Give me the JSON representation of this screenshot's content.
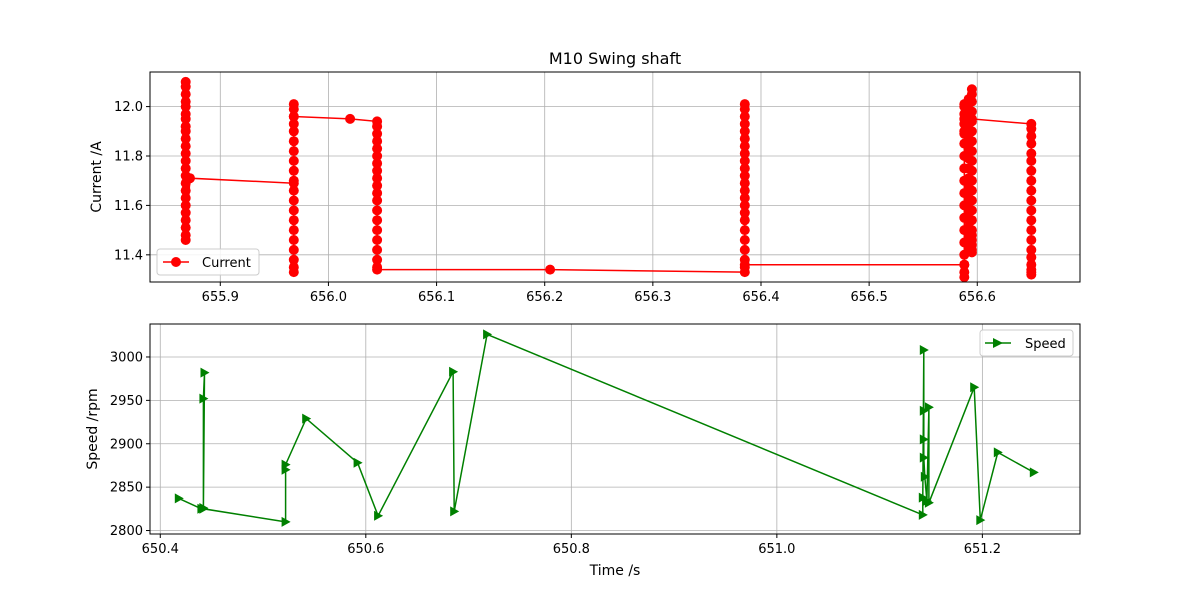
{
  "chart_data": [
    {
      "type": "line",
      "title": "M10 Swing shaft",
      "xlabel": "",
      "ylabel": "Current /A",
      "xlim": [
        655.835,
        656.695
      ],
      "ylim": [
        11.29,
        12.14
      ],
      "xticks": [
        655.9,
        656.0,
        656.1,
        656.2,
        656.3,
        656.4,
        656.5,
        656.6
      ],
      "xtick_labels": [
        "655.9",
        "656.0",
        "656.1",
        "656.2",
        "656.3",
        "656.4",
        "656.5",
        "656.6"
      ],
      "yticks": [
        11.4,
        11.6,
        11.8,
        12.0
      ],
      "ytick_labels": [
        "11.4",
        "11.6",
        "11.8",
        "12.0"
      ],
      "grid": true,
      "legend": "lower-left",
      "series": [
        {
          "name": "Current",
          "color": "#ff0000",
          "marker": "circle",
          "x": [
            655.868,
            655.868,
            655.868,
            655.868,
            655.868,
            655.868,
            655.868,
            655.868,
            655.868,
            655.868,
            655.868,
            655.868,
            655.868,
            655.868,
            655.868,
            655.868,
            655.868,
            655.868,
            655.868,
            655.868,
            655.868,
            655.868,
            655.868,
            655.868,
            655.872,
            655.968,
            655.968,
            655.968,
            655.968,
            655.968,
            655.968,
            655.968,
            655.968,
            655.968,
            655.968,
            655.968,
            655.968,
            655.968,
            655.968,
            655.968,
            655.968,
            655.968,
            655.968,
            655.968,
            655.968,
            655.968,
            655.968,
            656.02,
            656.045,
            656.045,
            656.045,
            656.045,
            656.045,
            656.045,
            656.045,
            656.045,
            656.045,
            656.045,
            656.045,
            656.045,
            656.045,
            656.045,
            656.045,
            656.045,
            656.045,
            656.045,
            656.045,
            656.045,
            656.205,
            656.385,
            656.385,
            656.385,
            656.385,
            656.385,
            656.385,
            656.385,
            656.385,
            656.385,
            656.385,
            656.385,
            656.385,
            656.385,
            656.385,
            656.385,
            656.385,
            656.385,
            656.385,
            656.385,
            656.385,
            656.385,
            656.385,
            656.385,
            656.385,
            656.588,
            656.588,
            656.588,
            656.588,
            656.588,
            656.588,
            656.588,
            656.588,
            656.588,
            656.588,
            656.588,
            656.588,
            656.588,
            656.588,
            656.588,
            656.588,
            656.588,
            656.588,
            656.588,
            656.588,
            656.588,
            656.592,
            656.592,
            656.592,
            656.592,
            656.592,
            656.592,
            656.592,
            656.592,
            656.592,
            656.592,
            656.592,
            656.592,
            656.592,
            656.592,
            656.592,
            656.592,
            656.592,
            656.592,
            656.592,
            656.592,
            656.592,
            656.592,
            656.595,
            656.595,
            656.595,
            656.595,
            656.595,
            656.595,
            656.595,
            656.595,
            656.595,
            656.595,
            656.595,
            656.595,
            656.595,
            656.595,
            656.595,
            656.595,
            656.595,
            656.595,
            656.595,
            656.595,
            656.595,
            656.595,
            656.65,
            656.65,
            656.65,
            656.65,
            656.65,
            656.65,
            656.65,
            656.65,
            656.65,
            656.65,
            656.65,
            656.65,
            656.65,
            656.65,
            656.65,
            656.65,
            656.65,
            656.65,
            656.65,
            656.65
          ],
          "y": [
            12.1,
            12.08,
            12.05,
            12.02,
            12.0,
            11.97,
            11.95,
            11.92,
            11.9,
            11.87,
            11.84,
            11.81,
            11.78,
            11.75,
            11.72,
            11.69,
            11.66,
            11.63,
            11.6,
            11.57,
            11.54,
            11.51,
            11.48,
            11.46,
            11.71,
            11.69,
            12.01,
            11.99,
            11.96,
            11.93,
            11.9,
            11.86,
            11.82,
            11.78,
            11.74,
            11.7,
            11.66,
            11.62,
            11.58,
            11.54,
            11.5,
            11.46,
            11.42,
            11.38,
            11.35,
            11.33,
            11.96,
            11.95,
            11.94,
            11.92,
            11.89,
            11.86,
            11.83,
            11.8,
            11.77,
            11.74,
            11.71,
            11.68,
            11.65,
            11.62,
            11.58,
            11.54,
            11.5,
            11.46,
            11.42,
            11.38,
            11.35,
            11.34,
            11.34,
            11.33,
            11.35,
            12.01,
            11.99,
            11.96,
            11.93,
            11.9,
            11.87,
            11.84,
            11.81,
            11.78,
            11.75,
            11.72,
            11.69,
            11.66,
            11.63,
            11.6,
            11.57,
            11.54,
            11.5,
            11.46,
            11.42,
            11.38,
            11.36,
            11.36,
            11.31,
            11.33,
            11.36,
            11.4,
            11.45,
            11.5,
            11.55,
            11.6,
            11.65,
            11.7,
            11.75,
            11.8,
            11.85,
            11.9,
            11.95,
            12.0,
            12.01,
            11.97,
            11.93,
            11.89,
            12.03,
            11.99,
            11.95,
            11.91,
            11.87,
            11.83,
            11.79,
            11.75,
            11.71,
            11.67,
            11.63,
            11.59,
            11.55,
            11.51,
            11.47,
            11.43,
            11.42,
            11.46,
            11.5,
            11.54,
            11.58,
            11.62,
            12.07,
            12.05,
            12.02,
            11.98,
            11.94,
            11.9,
            11.86,
            11.82,
            11.78,
            11.74,
            11.7,
            11.66,
            11.62,
            11.58,
            11.54,
            11.5,
            11.46,
            11.42,
            11.41,
            11.44,
            11.48,
            11.95,
            11.93,
            11.91,
            11.88,
            11.85,
            11.81,
            11.78,
            11.74,
            11.7,
            11.66,
            11.62,
            11.58,
            11.54,
            11.5,
            11.46,
            11.42,
            11.39,
            11.36,
            11.34,
            11.33,
            11.32
          ]
        }
      ]
    },
    {
      "type": "line",
      "title": "",
      "xlabel": "Time /s",
      "ylabel": "Speed /rpm",
      "xlim": [
        650.39,
        651.295
      ],
      "ylim": [
        2796,
        3038
      ],
      "xticks": [
        650.4,
        650.6,
        650.8,
        651.0,
        651.2
      ],
      "xtick_labels": [
        "650.4",
        "650.6",
        "650.8",
        "651.0",
        "651.2"
      ],
      "yticks": [
        2800,
        2850,
        2900,
        2950,
        3000
      ],
      "ytick_labels": [
        "2800",
        "2850",
        "2900",
        "2950",
        "3000"
      ],
      "grid": true,
      "legend": "top-right",
      "series": [
        {
          "name": "Speed",
          "color": "#008000",
          "marker": "triangle-right",
          "x": [
            650.418,
            650.44,
            650.442,
            650.442,
            650.443,
            650.442,
            650.522,
            650.522,
            650.522,
            650.542,
            650.592,
            650.612,
            650.685,
            650.686,
            650.718,
            651.142,
            651.142,
            651.143,
            651.143,
            651.143,
            651.143,
            651.144,
            651.146,
            651.148,
            651.148,
            651.192,
            651.198,
            651.215,
            651.25
          ],
          "y": [
            2837,
            2825,
            2826,
            2952,
            2982,
            2825,
            2810,
            2870,
            2876,
            2929,
            2878,
            2817,
            2983,
            2822,
            3026,
            2818,
            2838,
            3008,
            2938,
            2905,
            2884,
            2862,
            2834,
            2942,
            2832,
            2965,
            2812,
            2890,
            2867
          ]
        }
      ]
    }
  ]
}
